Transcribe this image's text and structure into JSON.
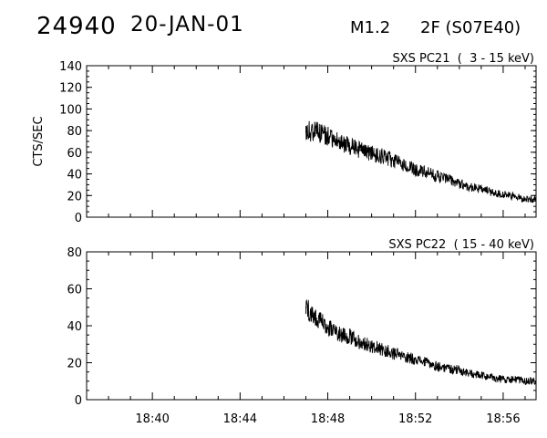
{
  "header": {
    "event_id": "24940",
    "date": "20-JAN-01",
    "goes_class": "M1.2",
    "optical": "2F (S07E40)"
  },
  "chart_data": [
    {
      "type": "line",
      "title": "SXS PC21  (  3 - 15 keV)",
      "ylabel": "CTS/SEC",
      "xlabel": "",
      "x_range": [
        "18:37:00",
        "18:57:30"
      ],
      "ylim": [
        0,
        140
      ],
      "yticks": [
        0,
        20,
        40,
        60,
        80,
        100,
        120,
        140
      ],
      "xticks": [
        "18:40",
        "18:44",
        "18:48",
        "18:52",
        "18:56"
      ],
      "grid": false,
      "series": [
        {
          "x": [
            "18:47:00",
            "18:47:30",
            "18:48:00",
            "18:48:30",
            "18:49:00",
            "18:49:30",
            "18:50:00",
            "18:50:30",
            "18:51:00",
            "18:51:30",
            "18:52:00",
            "18:52:30",
            "18:53:00",
            "18:53:30",
            "18:54:00",
            "18:54:30",
            "18:55:00",
            "18:55:30",
            "18:56:00",
            "18:56:30",
            "18:57:00",
            "18:57:30"
          ],
          "values": [
            79,
            80,
            75,
            70,
            66,
            62,
            59,
            56,
            52,
            48,
            44,
            41,
            38,
            35,
            31,
            28,
            26,
            23,
            21,
            19,
            17,
            16
          ]
        }
      ]
    },
    {
      "type": "line",
      "title": "SXS PC22  ( 15 - 40 keV)",
      "ylabel": "",
      "xlabel": "",
      "x_range": [
        "18:37:00",
        "18:57:30"
      ],
      "ylim": [
        0,
        80
      ],
      "yticks": [
        0,
        20,
        40,
        60,
        80
      ],
      "xticks": [
        "18:40",
        "18:44",
        "18:48",
        "18:52",
        "18:56"
      ],
      "grid": false,
      "series": [
        {
          "x": [
            "18:47:00",
            "18:47:30",
            "18:48:00",
            "18:48:30",
            "18:49:00",
            "18:49:30",
            "18:50:00",
            "18:50:30",
            "18:51:00",
            "18:51:30",
            "18:52:00",
            "18:52:30",
            "18:53:00",
            "18:53:30",
            "18:54:00",
            "18:54:30",
            "18:55:00",
            "18:55:30",
            "18:56:00",
            "18:56:30",
            "18:57:00",
            "18:57:30"
          ],
          "values": [
            50,
            44,
            39,
            36,
            34,
            31,
            29,
            27,
            25,
            23,
            22,
            20,
            18,
            17,
            16,
            14,
            13,
            12,
            11,
            11,
            10,
            10
          ]
        }
      ]
    }
  ]
}
